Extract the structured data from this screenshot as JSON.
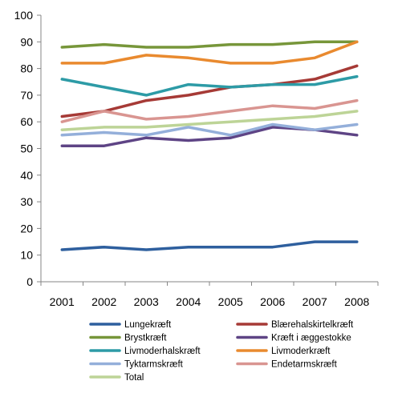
{
  "chart_data": {
    "type": "line",
    "title": "",
    "xlabel": "",
    "ylabel": "",
    "x": [
      "2001",
      "2002",
      "2003",
      "2004",
      "2005",
      "2006",
      "2007",
      "2008"
    ],
    "ylim": [
      0,
      100
    ],
    "yticks": [
      0,
      10,
      20,
      30,
      40,
      50,
      60,
      70,
      80,
      90,
      100
    ],
    "grid": false,
    "legend_position": "bottom",
    "series": [
      {
        "name": "Lungekræft",
        "color": "#2E5F9E",
        "values": [
          12,
          13,
          12,
          13,
          13,
          13,
          15,
          15
        ]
      },
      {
        "name": "Blærehalskirtelkræft",
        "color": "#A63A36",
        "values": [
          62,
          64,
          68,
          70,
          73,
          74,
          76,
          81
        ]
      },
      {
        "name": "Brystkræft",
        "color": "#77963A",
        "values": [
          88,
          89,
          88,
          88,
          89,
          89,
          90,
          90
        ]
      },
      {
        "name": "Kræft i æggestokke",
        "color": "#5E4485",
        "values": [
          51,
          51,
          54,
          53,
          54,
          58,
          57,
          55
        ]
      },
      {
        "name": "Livmoderhalskræft",
        "color": "#2D9BA6",
        "values": [
          76,
          73,
          70,
          74,
          73,
          74,
          74,
          77
        ]
      },
      {
        "name": "Livmoderkræft",
        "color": "#E98A2F",
        "values": [
          82,
          82,
          85,
          84,
          82,
          82,
          84,
          90
        ]
      },
      {
        "name": "Tyktarmskræft",
        "color": "#94AFDA",
        "values": [
          55,
          56,
          55,
          58,
          55,
          59,
          57,
          59
        ]
      },
      {
        "name": "Endetarmskræft",
        "color": "#D99591",
        "values": [
          60,
          64,
          61,
          62,
          64,
          66,
          65,
          68
        ]
      },
      {
        "name": "Total",
        "color": "#BDD497",
        "values": [
          57,
          58,
          58,
          59,
          60,
          61,
          62,
          64
        ]
      }
    ]
  }
}
